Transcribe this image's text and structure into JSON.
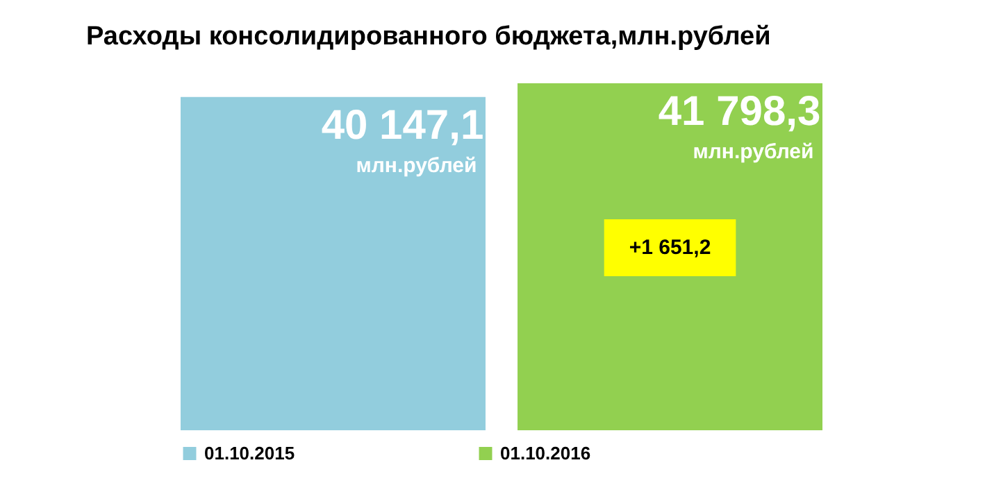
{
  "chart_data": {
    "type": "bar",
    "title": "Расходы консолидированного бюджета,млн.рублей",
    "categories": [
      null
    ],
    "series": [
      {
        "name": "01.10.2015",
        "color": "#92cddd",
        "values": [
          40147.1
        ],
        "value_labels": [
          "40 147,1"
        ]
      },
      {
        "name": "01.10.2016",
        "color": "#92d050",
        "values": [
          41798.3
        ],
        "value_labels": [
          "41 798,3"
        ]
      }
    ],
    "legend": "bottom",
    "annotations": [
      "млн.рублей",
      "млн.рублей",
      "+1 651,2"
    ]
  }
}
